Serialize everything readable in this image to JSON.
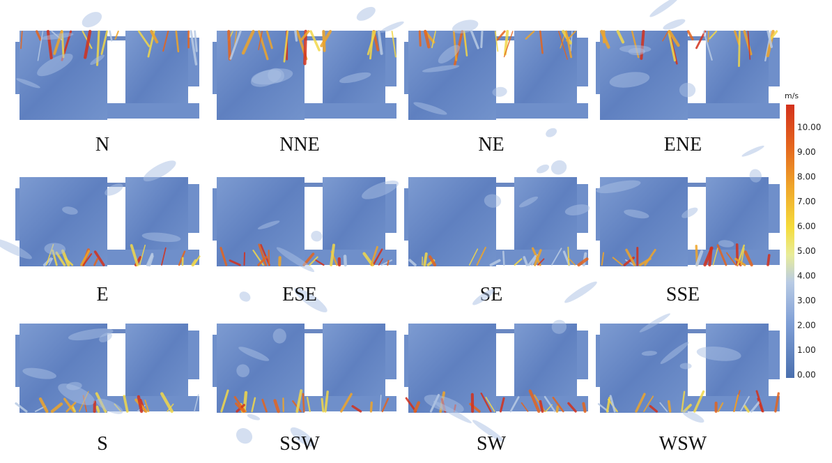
{
  "panels": [
    "N",
    "NNE",
    "NE",
    "ENE",
    "E",
    "ESE",
    "SE",
    "SSE",
    "S",
    "SSW",
    "SW",
    "WSW"
  ],
  "colorbar": {
    "unit": "m/s",
    "ticks": [
      "10.00",
      "9.00",
      "8.00",
      "7.00",
      "6.00",
      "5.00",
      "4.00",
      "3.00",
      "2.00",
      "1.00",
      "0.00"
    ]
  }
}
